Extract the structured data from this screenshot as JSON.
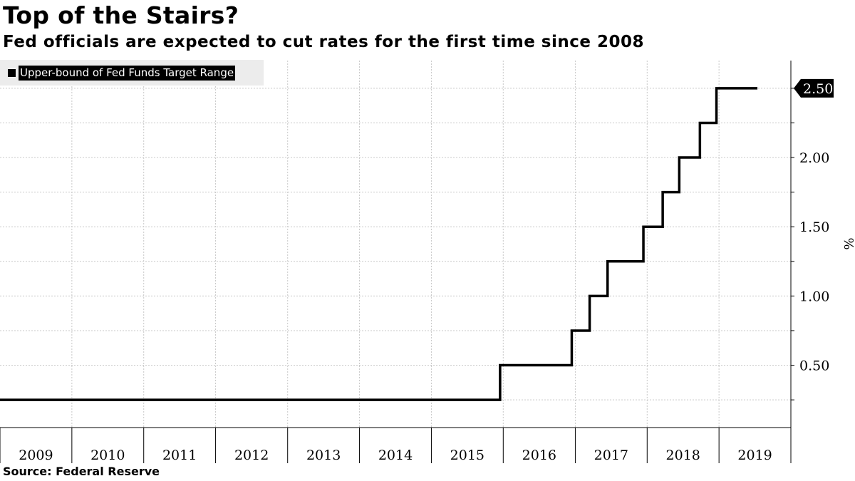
{
  "title": "Top of the Stairs?",
  "subtitle": "Fed officials are expected to cut rates for the first time since 2008",
  "source": "Source:  Federal Reserve",
  "colors": {
    "line": "#000000",
    "grid": "#c8c8c8",
    "legend_bg": "#ececec",
    "badge_bg": "#000000",
    "badge_text": "#ffffff"
  },
  "chart_data": {
    "type": "line",
    "step": true,
    "title": "Top of the Stairs?",
    "subtitle": "Fed officials are expected to cut rates for the first time since 2008",
    "ylabel": "%",
    "ylim": [
      0.05,
      2.7
    ],
    "xlim": [
      "2009-01-01",
      "2020-01-01"
    ],
    "yticks": [
      0.5,
      1.0,
      1.5,
      2.0,
      2.5
    ],
    "ytick_labels": [
      "0.50",
      "1.00",
      "1.50",
      "2.00",
      "2.50"
    ],
    "xtick_labels": [
      "2009",
      "2010",
      "2011",
      "2012",
      "2013",
      "2014",
      "2015",
      "2016",
      "2017",
      "2018",
      "2019"
    ],
    "grid": true,
    "legend_position": "top-left",
    "last_value_label": "2.50",
    "series": [
      {
        "name": "Upper-bound of Fed Funds Target Range",
        "x": [
          "2009-01-01",
          "2015-12-16",
          "2016-12-14",
          "2017-03-15",
          "2017-06-14",
          "2017-12-13",
          "2018-03-21",
          "2018-06-13",
          "2018-09-26",
          "2018-12-19",
          "2019-07-15"
        ],
        "y": [
          0.25,
          0.5,
          0.75,
          1.0,
          1.25,
          1.5,
          1.75,
          2.0,
          2.25,
          2.5,
          2.5
        ]
      }
    ]
  }
}
